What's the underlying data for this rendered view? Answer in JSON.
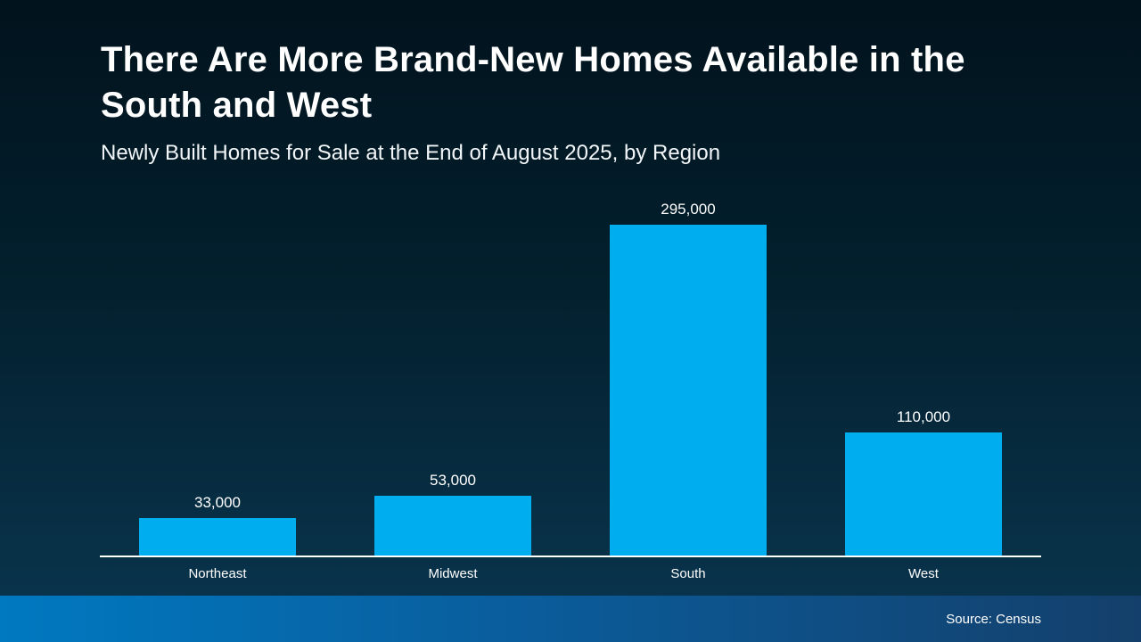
{
  "header": {
    "title": "There Are More Brand-New Homes Available in the South and West",
    "subtitle": "Newly Built Homes for Sale at the End of August 2025, by Region"
  },
  "chart_data": {
    "type": "bar",
    "title": "There Are More Brand-New Homes Available in the South and West",
    "subtitle": "Newly Built Homes for Sale at the End of August 2025, by Region",
    "categories": [
      "Northeast",
      "Midwest",
      "South",
      "West"
    ],
    "values": [
      33000,
      53000,
      295000,
      110000
    ],
    "value_labels": [
      "33,000",
      "53,000",
      "295,000",
      "110,000"
    ],
    "xlabel": "",
    "ylabel": "",
    "ylim": [
      0,
      295000
    ],
    "grid": false,
    "legend": false,
    "bar_color": "#00AEEF",
    "axis_line_color": "#FFFFFF",
    "background_top": "#01131D",
    "background_bottom": "#0A3650"
  },
  "footer": {
    "source_label": "Source: Census"
  }
}
